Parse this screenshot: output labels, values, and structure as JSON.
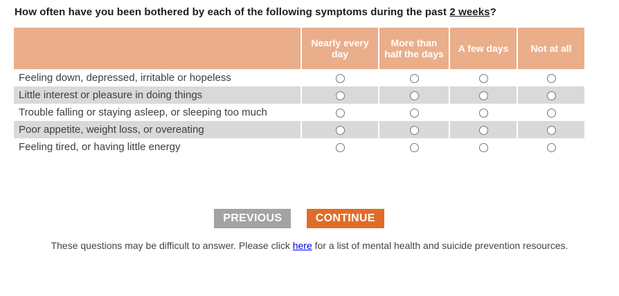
{
  "question": {
    "prefix": "How often have you been bothered by each of the following symptoms during the past ",
    "underlined": "2 weeks",
    "suffix": "?"
  },
  "table": {
    "columns": [
      "Nearly every day",
      "More than half the days",
      "A few days",
      "Not at all"
    ],
    "rows": [
      {
        "label": "Feeling down, depressed, irritable or hopeless"
      },
      {
        "label": "Little interest or pleasure in doing things"
      },
      {
        "label": "Trouble falling or staying asleep, or sleeping too much"
      },
      {
        "label": "Poor appetite, weight loss, or overeating"
      },
      {
        "label": "Feeling tired, or having little energy"
      }
    ],
    "radio_state": "all unselected"
  },
  "buttons": {
    "previous": "PREVIOUS",
    "continue": "CONTINUE"
  },
  "footer": {
    "before_link": "These questions may be difficult to answer. Please click ",
    "link_text": "here",
    "after_link": " for a list of mental health and suicide prevention resources."
  },
  "colors": {
    "header_bg": "#EAAE8A",
    "alt_row_bg": "#D9D9D9",
    "previous_bg": "#A3A3A3",
    "continue_bg": "#E06C28",
    "link": "#0000EE"
  }
}
